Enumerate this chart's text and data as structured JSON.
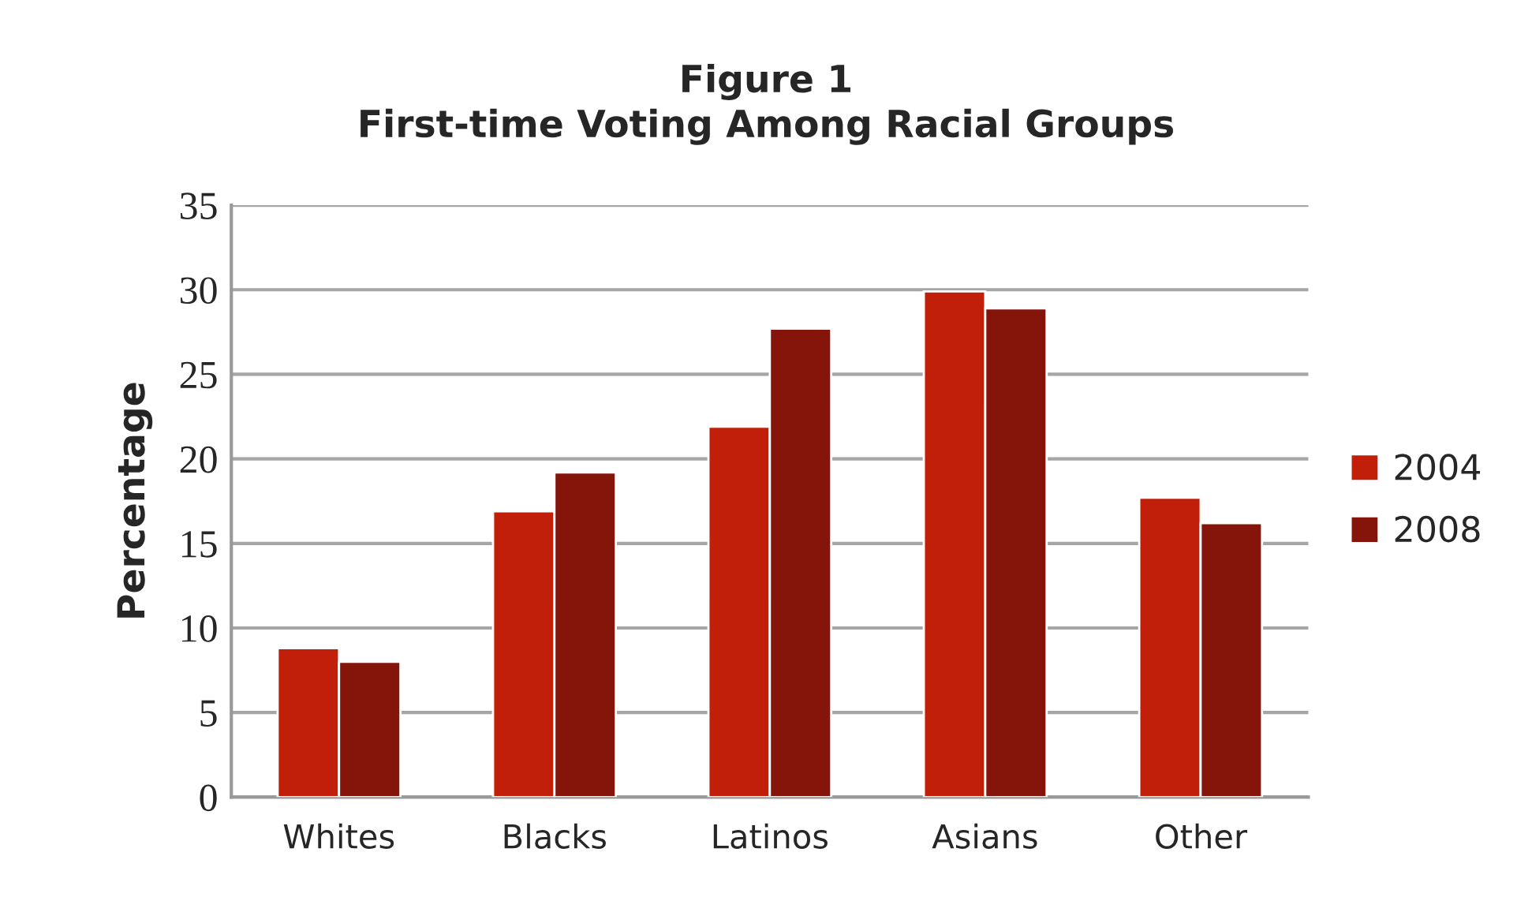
{
  "chart_data": {
    "type": "bar",
    "title": "Figure 1\nFirst-time Voting Among Racial Groups",
    "ylabel": "Percentage",
    "categories": [
      "Whites",
      "Blacks",
      "Latinos",
      "Asians",
      "Other"
    ],
    "series": [
      {
        "name": "2004",
        "color": "#c21f0a",
        "values": [
          8.8,
          16.9,
          21.9,
          29.9,
          17.7
        ]
      },
      {
        "name": "2008",
        "color": "#85150b",
        "values": [
          8.0,
          19.2,
          27.7,
          28.9,
          16.2
        ]
      }
    ],
    "ylim": [
      0,
      35
    ],
    "yticks": [
      0,
      5,
      10,
      15,
      20,
      25,
      30,
      35
    ],
    "grid": "y",
    "legend": "right"
  }
}
